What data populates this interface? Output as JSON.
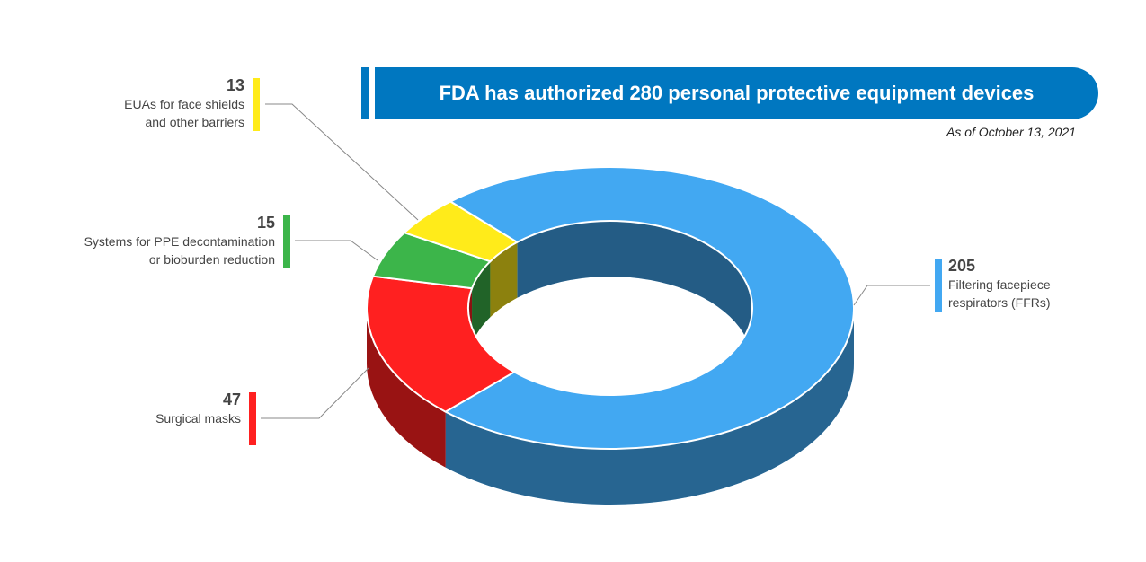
{
  "chart_data": {
    "type": "donut",
    "title": "FDA has authorized 280 personal protective equipment devices",
    "subtitle": "As of October 13, 2021",
    "categories": [
      "Filtering facepiece\nrespirators (FFRs)",
      "Surgical masks",
      "Systems for PPE decontamination\nor bioburden reduction",
      "EUAs for face shields\nand other barriers"
    ],
    "values": [
      205,
      47,
      15,
      13
    ],
    "colors": [
      "#42a8f2",
      "#ff2020",
      "#3cb54a",
      "#ffeb1a"
    ]
  }
}
